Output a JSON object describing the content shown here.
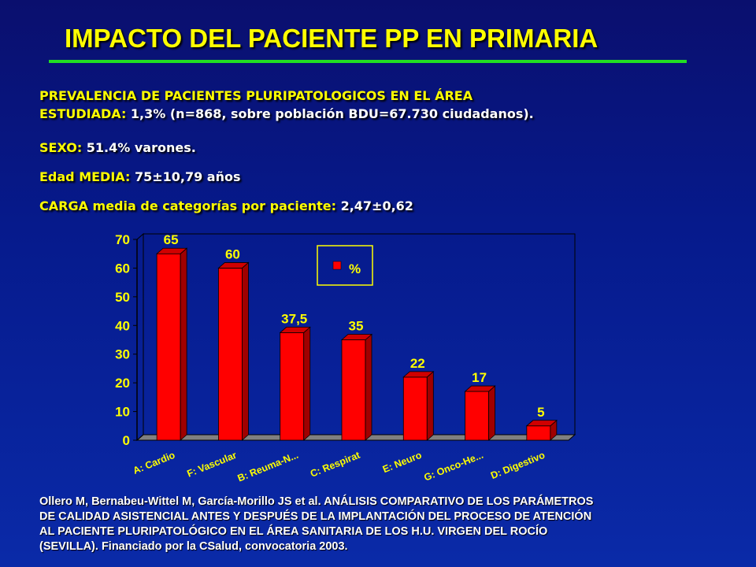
{
  "title": "IMPACTO DEL PACIENTE PP EN PRIMARIA",
  "stats": {
    "prevalence_label_1": "PREVALENCIA DE PACIENTES PLURIPATOLOGICOS EN EL ÁREA",
    "prevalence_label_2": "ESTUDIADA:",
    "prevalence_value": " 1,3% (n=868, sobre población BDU=67.730 ciudadanos).",
    "sex_label": "SEXO:",
    "sex_value": " 51.4% varones.",
    "age_label": "Edad MEDIA:",
    "age_value": " 75±10,79 años",
    "load_label": "CARGA media de categorías por paciente:",
    "load_value": " 2,47±0,62"
  },
  "chart_data": {
    "type": "bar",
    "categories": [
      "A: Cardio",
      "F: Vascular",
      "B: Reuma-N...",
      "C: Respirat",
      "E: Neuro",
      "G: Onco-He...",
      "D: Digestivo"
    ],
    "series": [
      {
        "name": "%",
        "values": [
          65,
          60,
          37.5,
          35,
          22,
          17,
          5
        ]
      }
    ],
    "data_labels": [
      "65",
      "60",
      "37,5",
      "35",
      "22",
      "17",
      "5"
    ],
    "yticks": [
      "0",
      "10",
      "20",
      "30",
      "40",
      "50",
      "60",
      "70"
    ],
    "ylim": [
      0,
      70
    ],
    "legend_position": "top-right",
    "grid": false,
    "bar_color": "#ff0000",
    "bar_side_color": "#a00000",
    "bar_top_color": "#d00000",
    "label_color": "#ffff00"
  },
  "reference": {
    "line1": "Ollero M, Bernabeu-Wittel M, García-Morillo JS et al. ANÁLISIS COMPARATIVO DE LOS PARÁMETROS",
    "line2": "DE CALIDAD ASISTENCIAL ANTES Y DESPUÉS DE LA IMPLANTACIÓN DEL PROCESO DE ATENCIÓN",
    "line3": "AL PACIENTE PLURIPATOLÓGICO EN EL ÁREA SANITARIA DE LOS H.U. VIRGEN DEL ROCÍO",
    "line4": "(SEVILLA).  Financiado por la CSalud, convocatoria 2003."
  }
}
